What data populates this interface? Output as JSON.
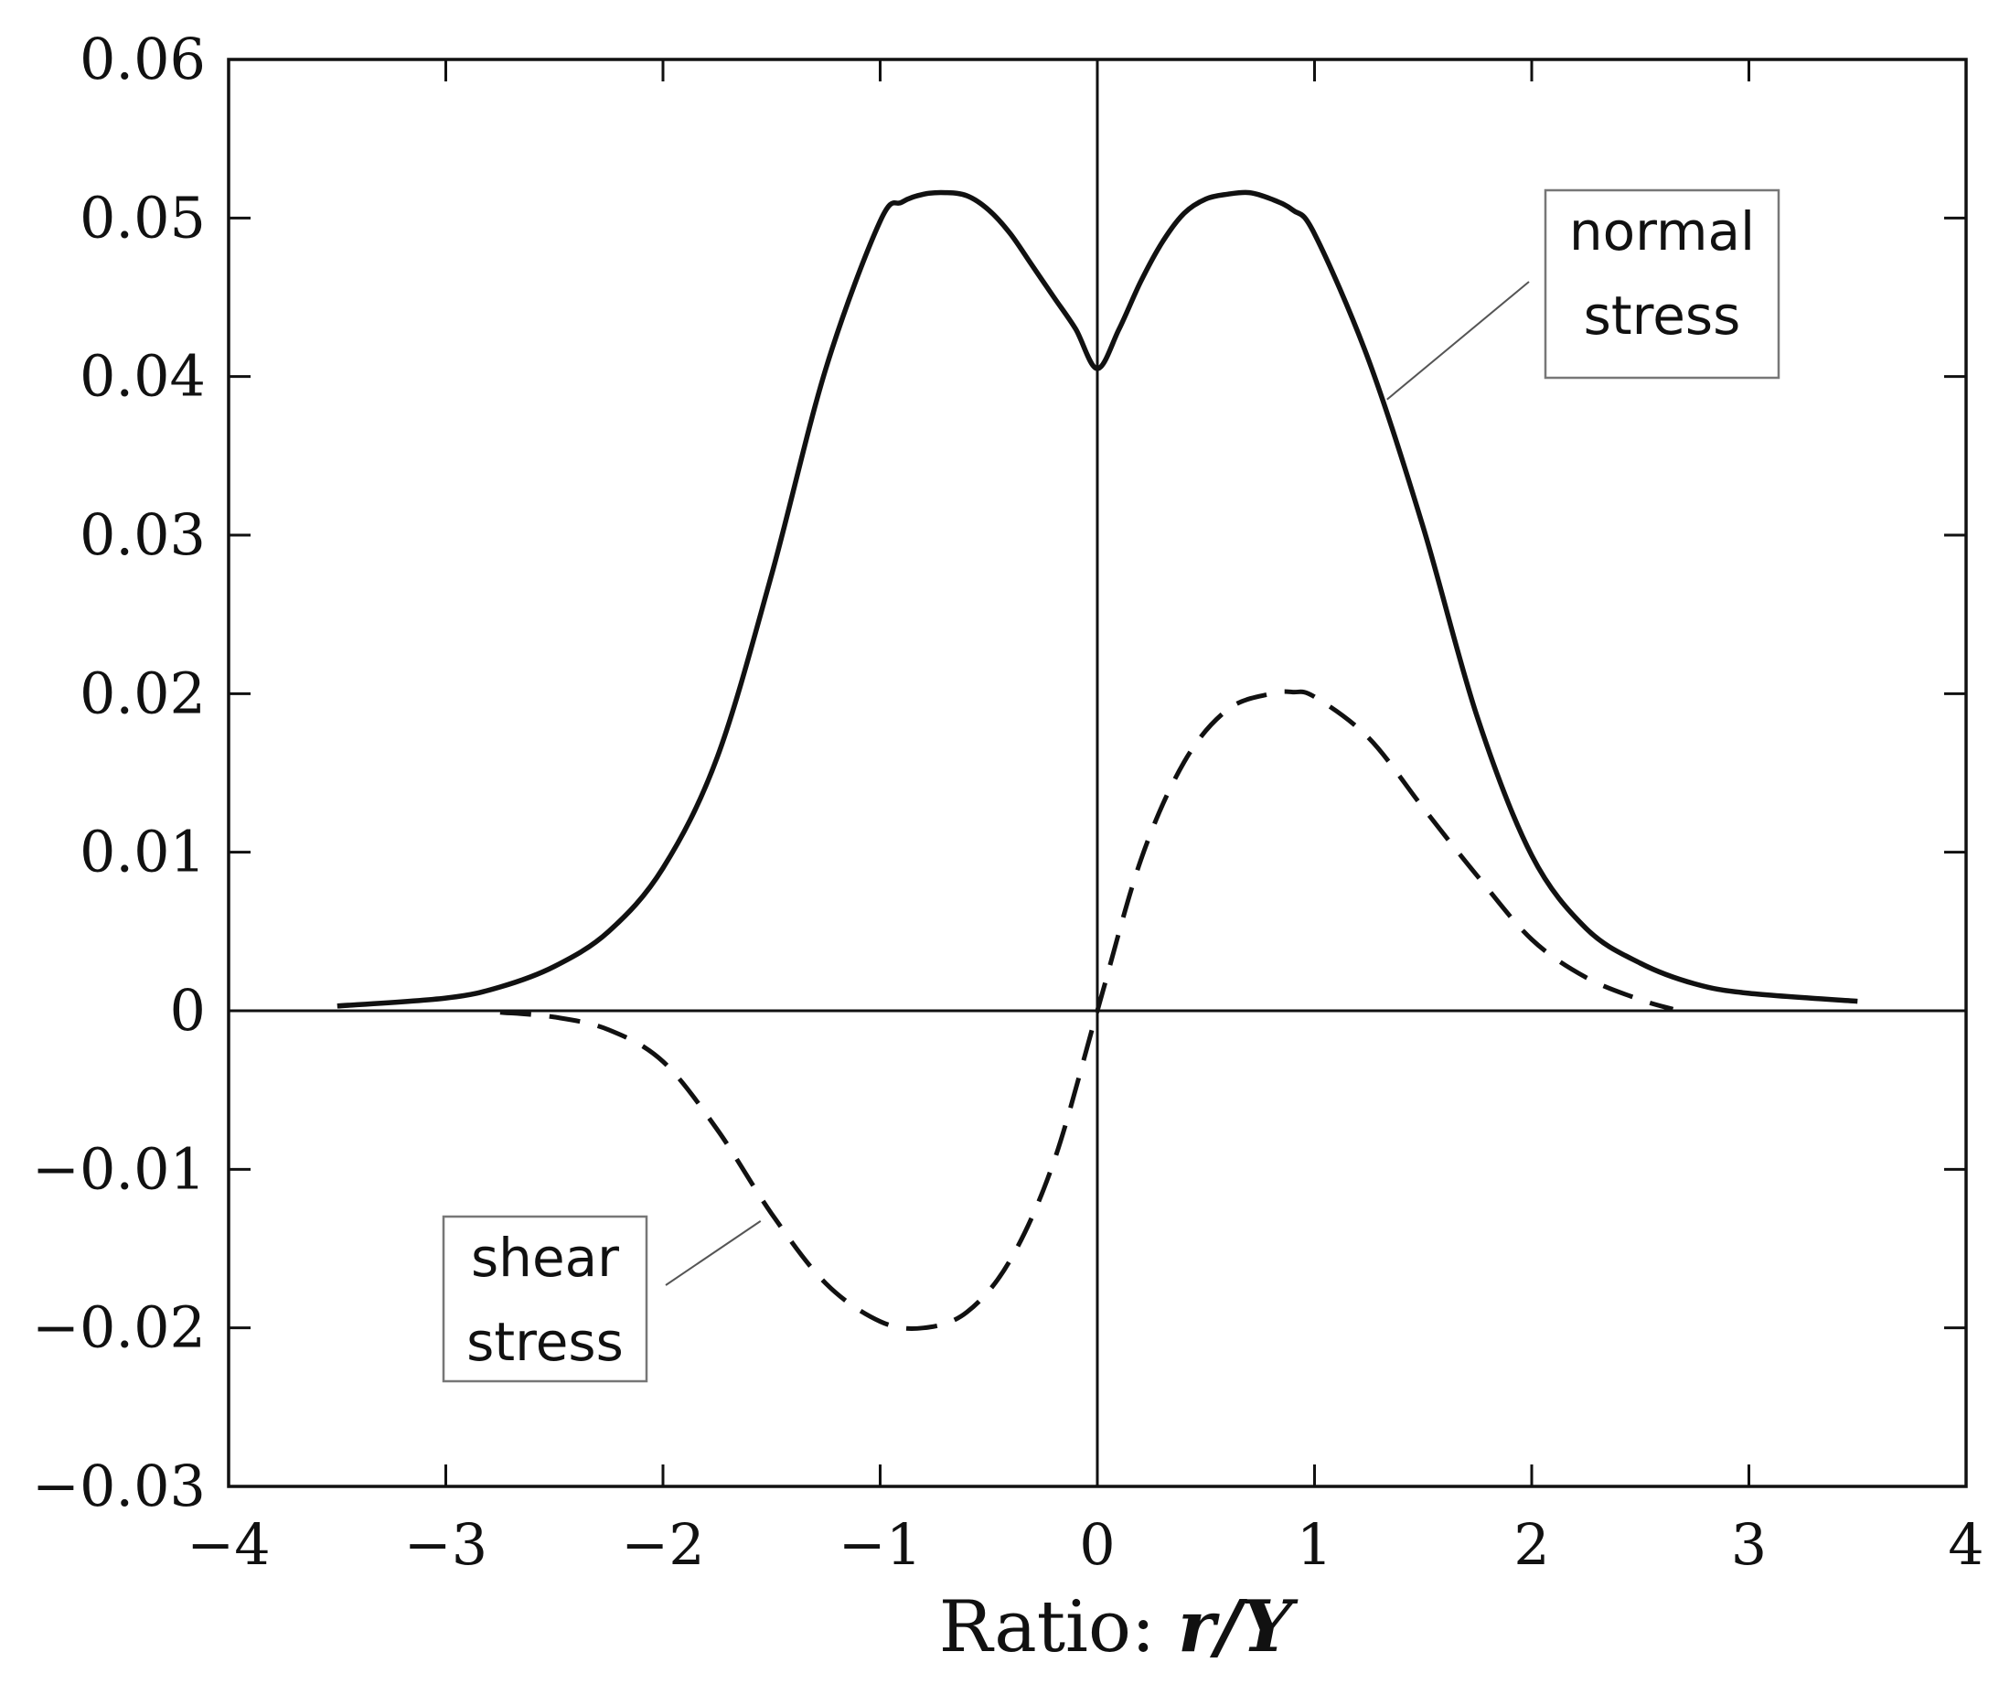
{
  "chart_data": {
    "type": "line",
    "title": "",
    "xlabel": "Ratio: ",
    "xlabel_var": "r/Y",
    "ylabel": "",
    "xlim": [
      -4,
      4
    ],
    "ylim": [
      -0.03,
      0.06
    ],
    "grid": false,
    "x_ticks": [
      -4,
      -3,
      -2,
      -1,
      0,
      1,
      2,
      3,
      4
    ],
    "x_tick_labels": [
      "−4",
      "−3",
      "−2",
      "−1",
      "0",
      "1",
      "2",
      "3",
      "4"
    ],
    "y_ticks": [
      -0.03,
      -0.02,
      -0.01,
      0,
      0.01,
      0.02,
      0.03,
      0.04,
      0.05,
      0.06
    ],
    "y_tick_labels": [
      "−0.03",
      "−0.02",
      "−0.01",
      "0",
      "0.01",
      "0.02",
      "0.03",
      "0.04",
      "0.05",
      "0.06"
    ],
    "series": [
      {
        "name": "normal stress",
        "style": "solid",
        "x": [
          -3.5,
          -3.0,
          -2.75,
          -2.5,
          -2.25,
          -2.0,
          -1.75,
          -1.5,
          -1.25,
          -1.0,
          -0.9,
          -0.8,
          -0.7,
          -0.6,
          -0.5,
          -0.4,
          -0.3,
          -0.2,
          -0.1,
          0.0,
          0.1,
          0.2,
          0.3,
          0.4,
          0.5,
          0.6,
          0.7,
          0.8,
          0.9,
          1.0,
          1.25,
          1.5,
          1.75,
          2.0,
          2.25,
          2.5,
          2.75,
          3.0,
          3.5
        ],
        "y": [
          0.0003,
          0.0008,
          0.0015,
          0.0028,
          0.005,
          0.009,
          0.016,
          0.0275,
          0.0405,
          0.0498,
          0.051,
          0.0515,
          0.0516,
          0.0514,
          0.0505,
          0.049,
          0.047,
          0.045,
          0.043,
          0.0405,
          0.043,
          0.046,
          0.0485,
          0.0503,
          0.0512,
          0.0515,
          0.0516,
          0.0512,
          0.0505,
          0.049,
          0.041,
          0.0305,
          0.0185,
          0.0098,
          0.0052,
          0.003,
          0.0017,
          0.0011,
          0.0006
        ]
      },
      {
        "name": "shear stress",
        "style": "dashed",
        "x": [
          -2.75,
          -2.5,
          -2.25,
          -2.0,
          -1.75,
          -1.5,
          -1.25,
          -1.0,
          -0.8,
          -0.6,
          -0.4,
          -0.2,
          0.0,
          0.2,
          0.4,
          0.6,
          0.8,
          0.9,
          1.0,
          1.25,
          1.5,
          1.75,
          2.0,
          2.25,
          2.5,
          2.65
        ],
        "y": [
          -0.0001,
          -0.0004,
          -0.0012,
          -0.0032,
          -0.0075,
          -0.0128,
          -0.0172,
          -0.0196,
          -0.02,
          -0.019,
          -0.0157,
          -0.0095,
          0.0,
          0.0095,
          0.0157,
          0.019,
          0.02,
          0.0201,
          0.0198,
          0.0172,
          0.0128,
          0.0085,
          0.0045,
          0.0021,
          0.0007,
          0.0001
        ]
      }
    ],
    "annotations": [
      {
        "lines": [
          "normal",
          "stress"
        ],
        "target": "normal stress",
        "at_x": 1.3
      },
      {
        "lines": [
          "shear",
          "stress"
        ],
        "target": "shear stress",
        "at_x": -1.5
      }
    ]
  }
}
